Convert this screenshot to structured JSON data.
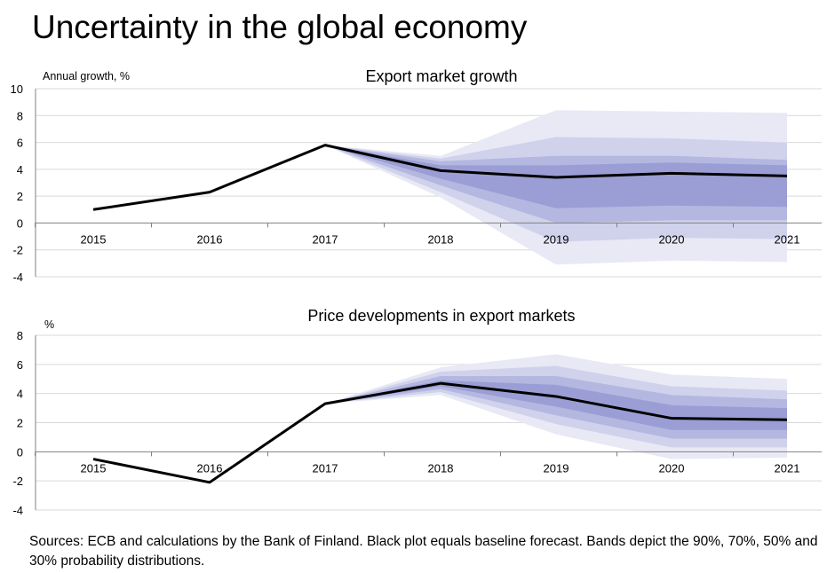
{
  "title": "Uncertainty in the global economy",
  "sources": "Sources: ECB and calculations by the Bank of Finland. Black plot equals baseline forecast. Bands depict the 90%, 70%, 50% and 30% probability distributions.",
  "colors": {
    "baseline": "#000000",
    "band90": "#e8e9f5",
    "band70": "#d0d2ec",
    "band50": "#b4b7e0",
    "band30": "#9a9ed4",
    "grid": "#d9d9d9",
    "axis": "#808080"
  },
  "chart_data": [
    {
      "type": "line",
      "title": "Export market growth",
      "ylabel": "Annual growth, %",
      "ylim": [
        -4,
        10
      ],
      "yticks": [
        10,
        8,
        6,
        4,
        2,
        0,
        -2,
        -4
      ],
      "categories": [
        "2015",
        "2016",
        "2017",
        "2018",
        "2019",
        "2020",
        "2021"
      ],
      "grid": true,
      "series": [
        {
          "values": [
            1.0,
            2.3,
            5.8,
            3.9,
            3.4,
            3.7,
            3.5
          ]
        }
      ],
      "bands": [
        {
          "probability": "90%",
          "lower": [
            null,
            null,
            5.8,
            1.9,
            -3.1,
            -2.8,
            -2.9
          ],
          "upper": [
            null,
            null,
            5.8,
            5.0,
            8.4,
            8.3,
            8.2
          ]
        },
        {
          "probability": "70%",
          "lower": [
            null,
            null,
            5.8,
            2.3,
            -1.4,
            -1.1,
            -1.2
          ],
          "upper": [
            null,
            null,
            5.8,
            4.8,
            6.4,
            6.3,
            6.0
          ]
        },
        {
          "probability": "50%",
          "lower": [
            null,
            null,
            5.8,
            2.8,
            0.0,
            0.2,
            0.2
          ],
          "upper": [
            null,
            null,
            5.8,
            4.6,
            5.0,
            5.0,
            4.7
          ]
        },
        {
          "probability": "30%",
          "lower": [
            null,
            null,
            5.8,
            3.3,
            1.1,
            1.3,
            1.2
          ],
          "upper": [
            null,
            null,
            5.8,
            4.3,
            4.3,
            4.5,
            4.3
          ]
        }
      ]
    },
    {
      "type": "line",
      "title": "Price developments in export markets",
      "ylabel": "%",
      "ylim": [
        -4,
        8
      ],
      "yticks": [
        8,
        6,
        4,
        2,
        0,
        -2,
        -4
      ],
      "categories": [
        "2015",
        "2016",
        "2017",
        "2018",
        "2019",
        "2020",
        "2021"
      ],
      "grid": true,
      "series": [
        {
          "values": [
            -0.5,
            -2.1,
            3.3,
            4.7,
            3.8,
            2.3,
            2.2
          ]
        }
      ],
      "bands": [
        {
          "probability": "90%",
          "lower": [
            null,
            null,
            3.3,
            3.9,
            1.2,
            -0.5,
            -0.4
          ],
          "upper": [
            null,
            null,
            3.3,
            5.8,
            6.7,
            5.3,
            5.0
          ]
        },
        {
          "probability": "70%",
          "lower": [
            null,
            null,
            3.3,
            4.1,
            1.9,
            0.3,
            0.3
          ],
          "upper": [
            null,
            null,
            3.3,
            5.5,
            5.9,
            4.5,
            4.2
          ]
        },
        {
          "probability": "50%",
          "lower": [
            null,
            null,
            3.3,
            4.3,
            2.5,
            0.9,
            0.9
          ],
          "upper": [
            null,
            null,
            3.3,
            5.2,
            5.2,
            3.9,
            3.6
          ]
        },
        {
          "probability": "30%",
          "lower": [
            null,
            null,
            3.3,
            4.5,
            3.1,
            1.5,
            1.5
          ],
          "upper": [
            null,
            null,
            3.3,
            4.9,
            4.6,
            3.2,
            3.0
          ]
        }
      ]
    }
  ]
}
